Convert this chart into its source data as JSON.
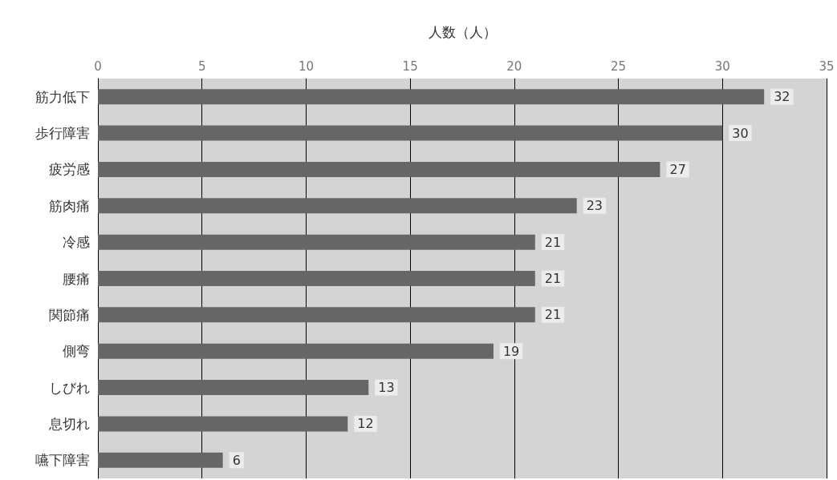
{
  "chart_data": {
    "type": "bar",
    "orientation": "horizontal",
    "xlabel": "人数（人）",
    "categories": [
      "筋力低下",
      "歩行障害",
      "疲労感",
      "筋肉痛",
      "冷感",
      "腰痛",
      "関節痛",
      "側弯",
      "しびれ",
      "息切れ",
      "嚥下障害"
    ],
    "values": [
      32,
      30,
      27,
      23,
      21,
      21,
      21,
      19,
      13,
      12,
      6
    ],
    "color": "#666666",
    "xlim": [
      0,
      35
    ],
    "xticks": [
      0,
      5,
      10,
      15,
      20,
      25,
      30,
      35
    ],
    "grid": "x",
    "data_labels": true
  }
}
